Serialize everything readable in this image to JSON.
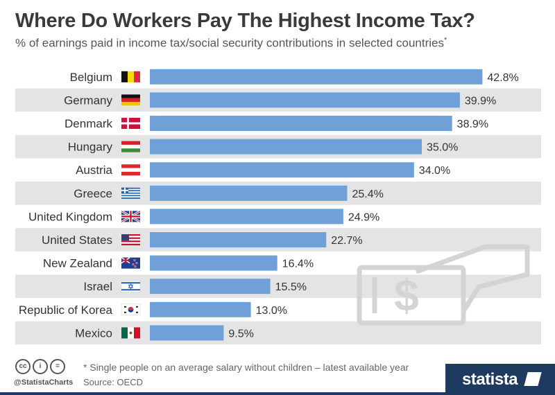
{
  "header": {
    "title": "Where Do Workers Pay The Highest Income Tax?",
    "subtitle": "% of earnings paid in income tax/social security contributions in selected countries",
    "subtitle_mark": "*"
  },
  "chart_data": {
    "type": "bar",
    "orientation": "horizontal",
    "title": "Where Do Workers Pay The Highest Income Tax?",
    "xlabel": "",
    "ylabel": "",
    "xlim": [
      0,
      45
    ],
    "grid": false,
    "legend": "none",
    "bar_color": "#6fa0d8",
    "stripe_color": "#e4e4e4",
    "categories": [
      "Belgium",
      "Germany",
      "Denmark",
      "Hungary",
      "Austria",
      "Greece",
      "United Kingdom",
      "United States",
      "New Zealand",
      "Israel",
      "Republic of Korea",
      "Mexico"
    ],
    "values": [
      42.8,
      39.9,
      38.9,
      35.0,
      34.0,
      25.4,
      24.9,
      22.7,
      16.4,
      15.5,
      13.0,
      9.5
    ],
    "value_labels": [
      "42.8%",
      "39.9%",
      "38.9%",
      "35.0%",
      "34.0%",
      "25.4%",
      "24.9%",
      "22.7%",
      "16.4%",
      "15.5%",
      "13.0%",
      "9.5%"
    ],
    "flags": [
      "belgium-flag",
      "germany-flag",
      "denmark-flag",
      "hungary-flag",
      "austria-flag",
      "greece-flag",
      "uk-flag",
      "us-flag",
      "new-zealand-flag",
      "israel-flag",
      "korea-flag",
      "mexico-flag"
    ]
  },
  "footer": {
    "license_icons": [
      "cc",
      "i",
      "="
    ],
    "handle": "@StatistaCharts",
    "note": "* Single people on an average salary without children – latest available year",
    "source": "Source: OECD",
    "brand": "statista"
  }
}
